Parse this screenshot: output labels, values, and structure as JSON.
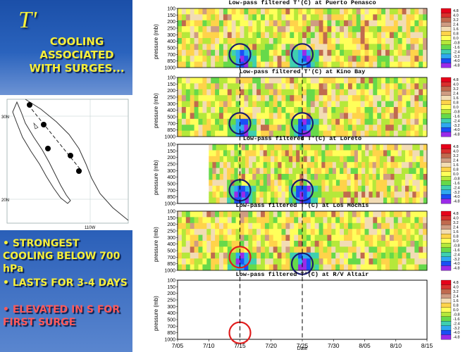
{
  "slide": {
    "symbol": "T'",
    "headline": "COOLING ASSOCIATED WITH SURGES...",
    "bullets": [
      {
        "text": "• STRONGEST COOLING BELOW 700 hPa",
        "color": "#f6ef3a"
      },
      {
        "text": "• LASTS FOR 3-4 DAYS",
        "color": "#f6ef3a"
      },
      {
        "text": "• ELEVATED IN S FOR FIRST SURGE",
        "color": "#ff5a5a"
      }
    ]
  },
  "map": {
    "lat_labels": [
      "30N",
      "20N"
    ],
    "lon_label": "110W",
    "station_count": 5
  },
  "chart_data": {
    "type": "heatmap",
    "variable": "T'(C)",
    "xlabel": "Date",
    "ylabel": "pressure (mb)",
    "x_ticks": [
      "7/05",
      "7/10",
      "7/15",
      "7/20",
      "7/25",
      "7/30",
      "8/05",
      "8/10",
      "8/15"
    ],
    "y_ticks": [
      "100",
      "150",
      "200",
      "250",
      "300",
      "400",
      "500",
      "700",
      "850",
      "1000"
    ],
    "colorbar": {
      "levels": [
        "4.8",
        "4.0",
        "3.2",
        "2.4",
        "1.6",
        "0.8",
        "0.0",
        "-0.8",
        "-1.6",
        "-2.4",
        "-3.2",
        "-4.0",
        "-4.8"
      ],
      "colors": [
        "#e6001a",
        "#d9302d",
        "#c06a4e",
        "#cf9c82",
        "#f2dcb4",
        "#ffd34a",
        "#ffff5a",
        "#b5e83a",
        "#66d94a",
        "#3fcfb0",
        "#2fa9ef",
        "#1a4ff5",
        "#9a2be8"
      ]
    },
    "surge_dates": [
      "7/15",
      "7/25"
    ],
    "panels": [
      {
        "title": "Low-pass filtered T'(C) at Puerto Penasco",
        "x_range": [
          "7/05",
          "8/15"
        ],
        "markers": [
          {
            "date": "7/15",
            "level_mb": 700,
            "color": "navy"
          },
          {
            "date": "7/25",
            "level_mb": 700,
            "color": "navy"
          }
        ]
      },
      {
        "title": "Low-pass filtered T'(C) at Kino Bay",
        "x_range": [
          "7/05",
          "8/15"
        ],
        "markers": [
          {
            "date": "7/15",
            "level_mb": 700,
            "color": "navy"
          },
          {
            "date": "7/25",
            "level_mb": 700,
            "color": "navy"
          }
        ]
      },
      {
        "title": "Low-pass filtered T'(C) at Loreto",
        "x_range": [
          "7/10",
          "8/15"
        ],
        "markers": [
          {
            "date": "7/15",
            "level_mb": 700,
            "color": "navy"
          },
          {
            "date": "7/25",
            "level_mb": 700,
            "color": "navy"
          }
        ]
      },
      {
        "title": "Low-pass filtered T'(C) at Los Mochis",
        "x_range": [
          "7/05",
          "8/15"
        ],
        "markers": [
          {
            "date": "7/15",
            "level_mb": 700,
            "color": "red"
          },
          {
            "date": "7/25",
            "level_mb": 850,
            "color": "navy"
          }
        ]
      },
      {
        "title": "Low-pass filtered T'(C) at R/V Altair",
        "x_range": [
          "7/05",
          "8/13"
        ],
        "markers": [
          {
            "date": "7/15",
            "level_mb": 850,
            "color": "red"
          }
        ]
      }
    ]
  }
}
